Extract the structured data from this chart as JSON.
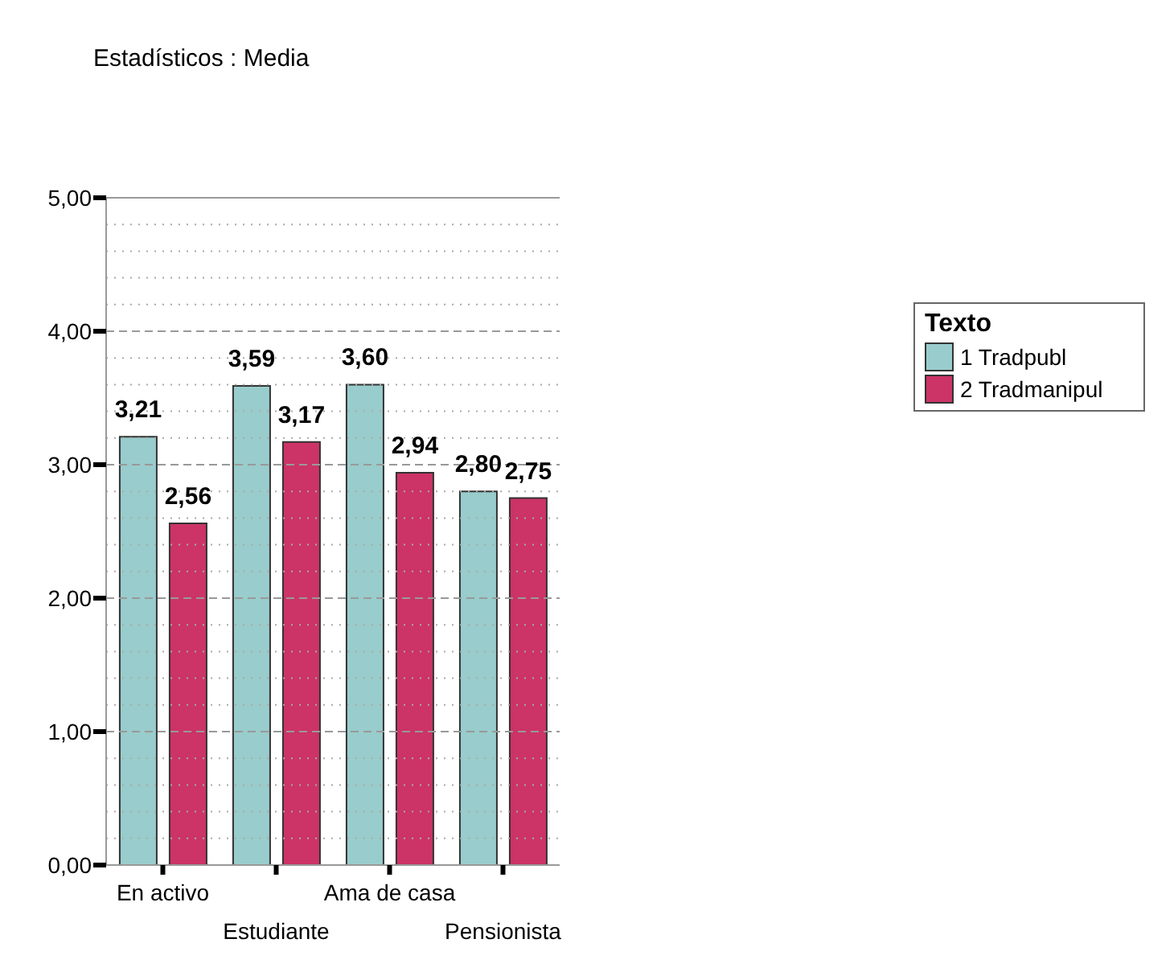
{
  "chart_data": {
    "type": "bar",
    "title": "Estadísticos : Media",
    "categories": [
      "En activo",
      "Estudiante",
      "Ama de casa",
      "Pensionista"
    ],
    "series": [
      {
        "name": "1 Tradpubl",
        "color": "#99cccc",
        "values": [
          3.21,
          3.59,
          3.6,
          2.8
        ],
        "value_labels": [
          "3,21",
          "3,59",
          "3,60",
          "2,80"
        ]
      },
      {
        "name": "2 Tradmanipul",
        "color": "#cc3366",
        "values": [
          2.56,
          3.17,
          2.94,
          2.75
        ],
        "value_labels": [
          "2,56",
          "3,17",
          "2,94",
          "2,75"
        ]
      }
    ],
    "ylim": [
      0,
      5
    ],
    "yticks": [
      {
        "value": 0,
        "label": "0,00"
      },
      {
        "value": 0.2,
        "label": null
      },
      {
        "value": 0.4,
        "label": null
      },
      {
        "value": 0.6,
        "label": null
      },
      {
        "value": 0.8,
        "label": null
      },
      {
        "value": 1,
        "label": "1,00"
      },
      {
        "value": 1.2,
        "label": null
      },
      {
        "value": 1.4,
        "label": null
      },
      {
        "value": 1.6,
        "label": null
      },
      {
        "value": 1.8,
        "label": null
      },
      {
        "value": 2,
        "label": "2,00"
      },
      {
        "value": 2.2,
        "label": null
      },
      {
        "value": 2.4,
        "label": null
      },
      {
        "value": 2.6,
        "label": null
      },
      {
        "value": 2.8,
        "label": null
      },
      {
        "value": 3,
        "label": "3,00"
      },
      {
        "value": 3.2,
        "label": null
      },
      {
        "value": 3.4,
        "label": null
      },
      {
        "value": 3.6,
        "label": null
      },
      {
        "value": 3.8,
        "label": null
      },
      {
        "value": 4,
        "label": "4,00"
      },
      {
        "value": 4.2,
        "label": null
      },
      {
        "value": 4.4,
        "label": null
      },
      {
        "value": 4.6,
        "label": null
      },
      {
        "value": 4.8,
        "label": null
      },
      {
        "value": 5,
        "label": "5,00"
      }
    ],
    "grid": "y",
    "legend": "top right",
    "legend_title": "Texto"
  }
}
